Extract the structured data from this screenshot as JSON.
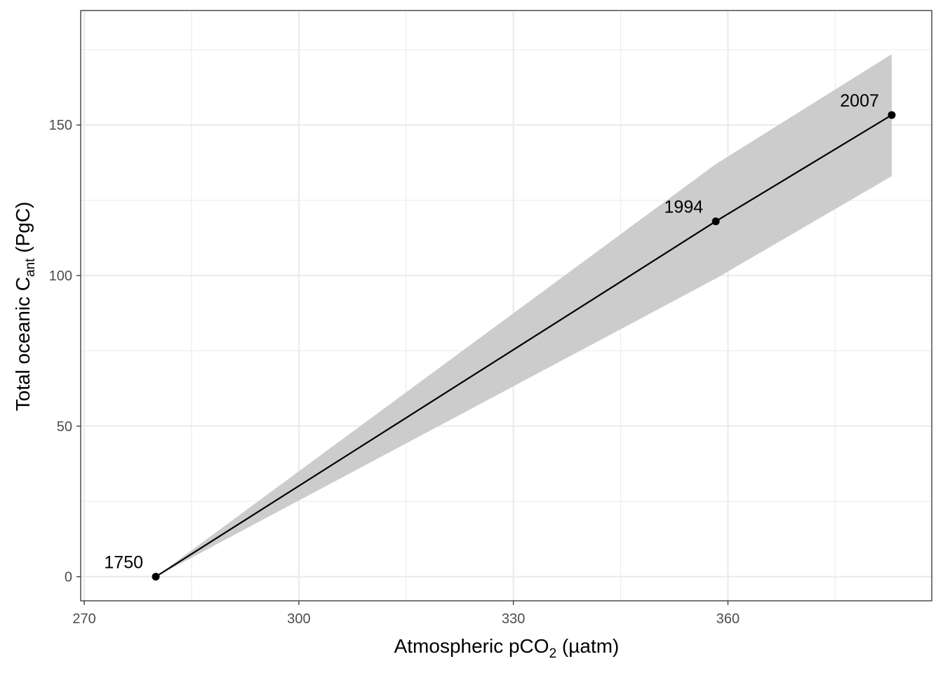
{
  "chart_data": {
    "type": "line",
    "xlabel": {
      "pre": "Atmospheric pCO",
      "sub": "2",
      "post": " (µatm)"
    },
    "ylabel": {
      "pre": "Total oceanic C",
      "sub": "ant",
      "post": " (PgC)"
    },
    "xlim": [
      269.5,
      388.5
    ],
    "ylim": [
      -8,
      188
    ],
    "x_ticks": [
      270,
      300,
      330,
      360
    ],
    "x_tick_labels": [
      "270",
      "300",
      "330",
      "360"
    ],
    "x_minor": [
      285,
      315,
      345,
      375
    ],
    "y_ticks": [
      0,
      50,
      100,
      150
    ],
    "y_tick_labels": [
      "0",
      "50",
      "100",
      "150"
    ],
    "y_minor": [
      25,
      75,
      125,
      175
    ],
    "grid": true,
    "series": [
      {
        "points": [
          {
            "x": 280,
            "y": 0,
            "label": "1750"
          },
          {
            "x": 358.3,
            "y": 118,
            "label": "1994"
          },
          {
            "x": 382.9,
            "y": 153.3,
            "label": "2007"
          }
        ],
        "ribbon": {
          "x": [
            280,
            358.3,
            382.9
          ],
          "lower": [
            0,
            99,
            133
          ],
          "upper": [
            0,
            137,
            173.5
          ]
        }
      }
    ],
    "colors": {
      "line": "#000000",
      "ribbon": "#cccccc",
      "grid": "#ebebeb",
      "frame": "#333333"
    }
  }
}
